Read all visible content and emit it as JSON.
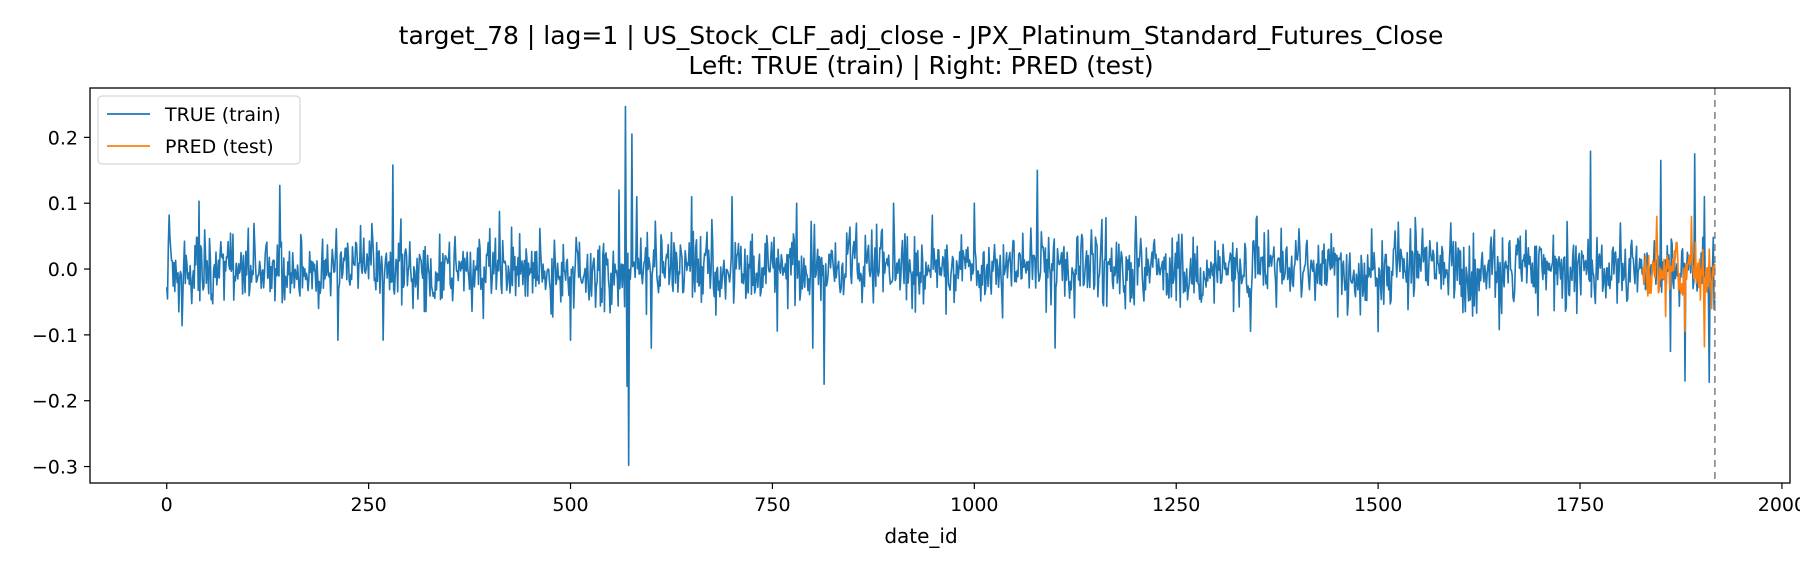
{
  "chart_data": {
    "type": "line",
    "title": "target_78 | lag=1 | US_Stock_CLF_adj_close - JPX_Platinum_Standard_Futures_Close",
    "subtitle": "Left: TRUE (train) | Right: PRED (test)",
    "xlabel": "date_id",
    "ylabel": "",
    "xlim": [
      -95,
      2010
    ],
    "ylim": [
      -0.325,
      0.275
    ],
    "x_ticks": [
      0,
      250,
      500,
      750,
      1000,
      1250,
      1500,
      1750,
      2000
    ],
    "x_tick_labels": [
      "0",
      "250",
      "500",
      "750",
      "1000",
      "1250",
      "1500",
      "1750",
      "2000"
    ],
    "y_ticks": [
      0.2,
      0.1,
      0.0,
      -0.1,
      -0.2,
      -0.3
    ],
    "y_tick_labels": [
      "0.2",
      "0.1",
      "0.0",
      "−0.1",
      "−0.2",
      "−0.3"
    ],
    "grid": false,
    "legend_position": "upper-left",
    "vline": {
      "x": 1917,
      "style": "dashed",
      "color": "#808080"
    },
    "series": [
      {
        "name": "TRUE (train)",
        "color": "#1f77b4",
        "x_range": [
          0,
          1917
        ],
        "base_std": 0.028,
        "notable_points": [
          [
            3,
            0.082
          ],
          [
            15,
            -0.065
          ],
          [
            19,
            -0.086
          ],
          [
            40,
            0.103
          ],
          [
            101,
            0.062
          ],
          [
            140,
            0.127
          ],
          [
            212,
            -0.108
          ],
          [
            240,
            0.066
          ],
          [
            268,
            -0.108
          ],
          [
            280,
            0.158
          ],
          [
            290,
            0.076
          ],
          [
            500,
            -0.108
          ],
          [
            560,
            0.12
          ],
          [
            568,
            0.247
          ],
          [
            570,
            -0.178
          ],
          [
            572,
            -0.298
          ],
          [
            576,
            0.205
          ],
          [
            582,
            0.11
          ],
          [
            600,
            -0.12
          ],
          [
            650,
            0.11
          ],
          [
            700,
            0.11
          ],
          [
            780,
            0.1
          ],
          [
            800,
            -0.12
          ],
          [
            814,
            -0.175
          ],
          [
            900,
            0.1
          ],
          [
            1000,
            0.1
          ],
          [
            1078,
            0.15
          ],
          [
            1100,
            -0.12
          ],
          [
            1200,
            0.08
          ],
          [
            1350,
            0.08
          ],
          [
            1500,
            -0.095
          ],
          [
            1590,
            0.07
          ],
          [
            1650,
            -0.092
          ],
          [
            1763,
            0.179
          ],
          [
            1800,
            0.07
          ],
          [
            1850,
            0.165
          ],
          [
            1862,
            -0.125
          ],
          [
            1880,
            -0.17
          ],
          [
            1892,
            0.175
          ],
          [
            1910,
            -0.172
          ]
        ]
      },
      {
        "name": "PRED (test)",
        "color": "#ff7f0e",
        "x_range": [
          1828,
          1917
        ],
        "base_std": 0.025,
        "notable_points": [
          [
            1845,
            0.08
          ],
          [
            1856,
            -0.072
          ],
          [
            1869,
            0.04
          ],
          [
            1880,
            -0.095
          ],
          [
            1888,
            0.08
          ],
          [
            1904,
            -0.118
          ],
          [
            1913,
            -0.06
          ]
        ]
      }
    ]
  }
}
